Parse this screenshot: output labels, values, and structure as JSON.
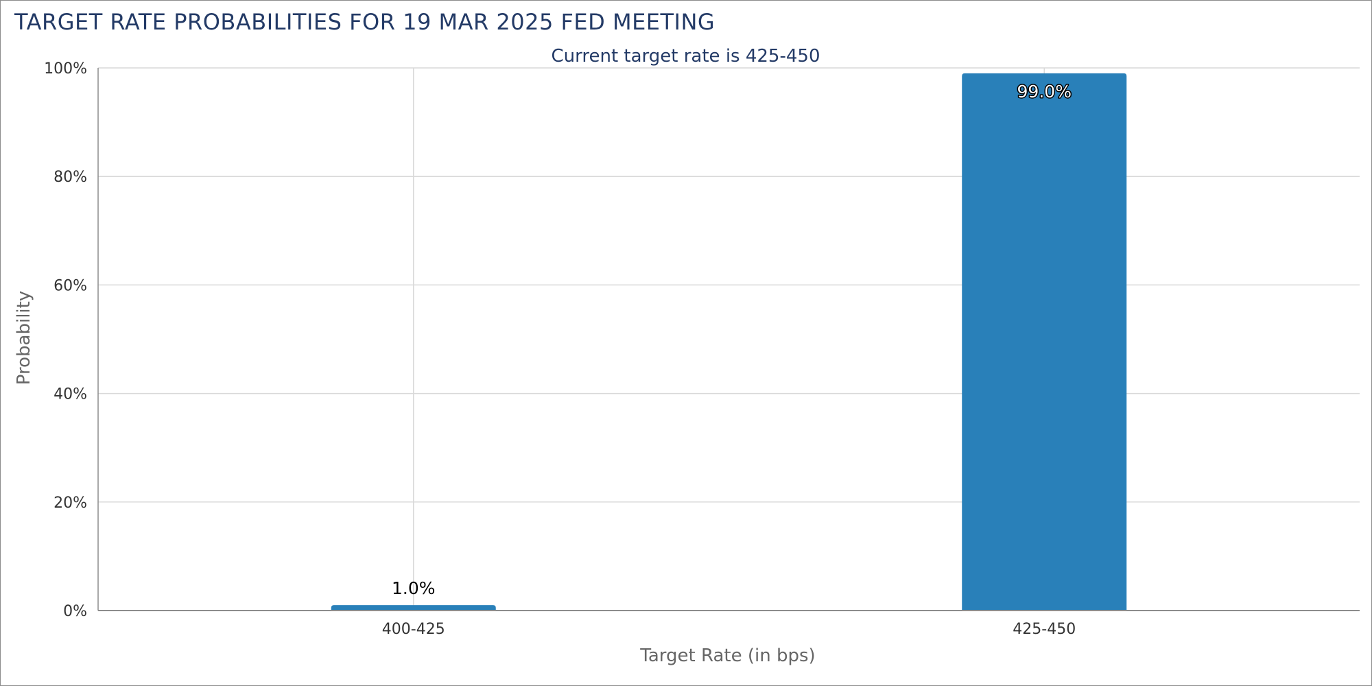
{
  "chart_data": {
    "type": "bar",
    "title": "TARGET RATE PROBABILITIES FOR 19 MAR 2025 FED MEETING",
    "subtitle": "Current target rate is 425-450",
    "xlabel": "Target Rate (in bps)",
    "ylabel": "Probability",
    "categories": [
      "400-425",
      "425-450"
    ],
    "values": [
      1.0,
      99.0
    ],
    "data_labels": [
      "1.0%",
      "99.0%"
    ],
    "ylim": [
      0,
      100
    ],
    "yticks": [
      0,
      20,
      40,
      60,
      80,
      100
    ],
    "ytick_labels": [
      "0%",
      "20%",
      "40%",
      "60%",
      "80%",
      "100%"
    ],
    "grid": true,
    "legend": false,
    "colors": {
      "bar": "#2980b9",
      "title": "#233a66",
      "grid": "#d9d9d9",
      "axis_line": "#8c8c8c"
    }
  }
}
